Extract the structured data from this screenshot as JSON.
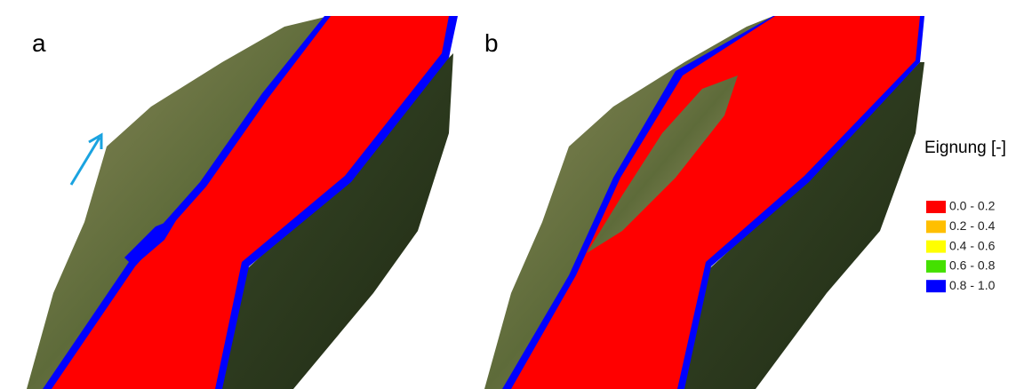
{
  "panels": [
    {
      "label": "a"
    },
    {
      "label": "b"
    }
  ],
  "legend": {
    "title": "Eignung [-]",
    "items": [
      {
        "label": "0.0 - 0.2",
        "color": "#ff0000"
      },
      {
        "label": "0.2 - 0.4",
        "color": "#ffbf00"
      },
      {
        "label": "0.4 - 0.6",
        "color": "#ffff00"
      },
      {
        "label": "0.6 - 0.8",
        "color": "#44e000"
      },
      {
        "label": "0.8 - 1.0",
        "color": "#0000ff"
      }
    ]
  }
}
